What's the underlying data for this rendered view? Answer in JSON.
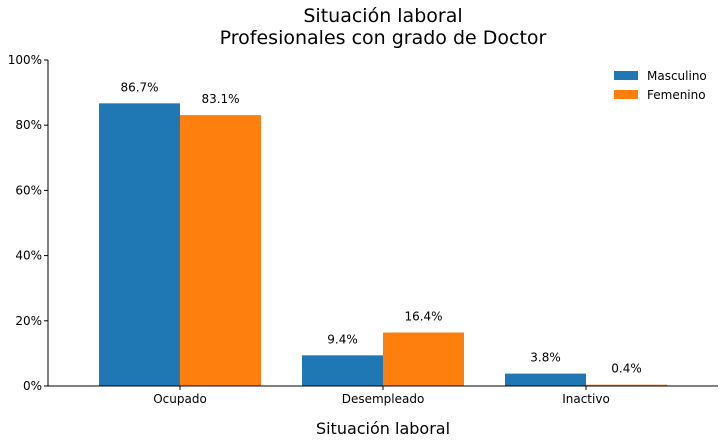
{
  "chart_data": {
    "type": "bar",
    "title": "Situación laboral",
    "subtitle": "Profesionales con grado de Doctor",
    "xlabel": "Situación laboral",
    "ylabel": "",
    "categories": [
      "Ocupado",
      "Desempleado",
      "Inactivo"
    ],
    "ylim": [
      0,
      100
    ],
    "yticks": [
      0,
      20,
      40,
      60,
      80,
      100
    ],
    "ytick_labels": [
      "0%",
      "20%",
      "40%",
      "60%",
      "80%",
      "100%"
    ],
    "grid": false,
    "legend_position": "top-right",
    "series": [
      {
        "name": "Masculino",
        "color": "#1f77b4",
        "values": [
          86.7,
          9.4,
          3.8
        ],
        "data_labels": [
          "86.7%",
          "9.4%",
          "3.8%"
        ]
      },
      {
        "name": "Femenino",
        "color": "#ff7f0e",
        "values": [
          83.1,
          16.4,
          0.4
        ],
        "data_labels": [
          "83.1%",
          "16.4%",
          "0.4%"
        ]
      }
    ]
  }
}
